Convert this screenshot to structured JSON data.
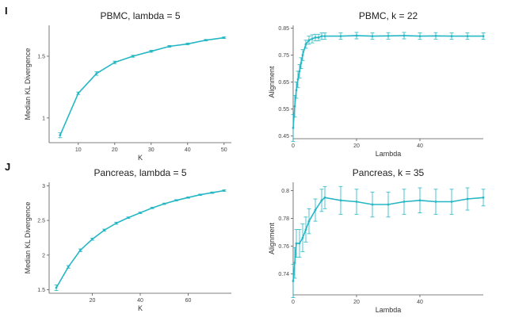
{
  "panels": {
    "I": "I",
    "J": "J"
  },
  "theme": {
    "series_color": "#26b7c5"
  },
  "chart_data": [
    {
      "type": "line",
      "title": "PBMC, lambda = 5",
      "xlabel": "K",
      "ylabel": "Median KL Divergence",
      "xticks": [
        10,
        20,
        30,
        40,
        50
      ],
      "yticks": [
        1.0,
        1.5
      ],
      "xlim": [
        2,
        52
      ],
      "ylim": [
        0.8,
        1.75
      ],
      "x": [
        5,
        10,
        15,
        20,
        25,
        30,
        35,
        40,
        45,
        50
      ],
      "values": [
        0.86,
        1.2,
        1.36,
        1.45,
        1.5,
        1.54,
        1.58,
        1.6,
        1.63,
        1.65
      ],
      "errors": [
        0.02,
        0.01,
        0.015,
        0.01,
        0.008,
        0.008,
        0.007,
        0.007,
        0.006,
        0.006
      ]
    },
    {
      "type": "line",
      "title": "PBMC, k = 22",
      "xlabel": "Lambda",
      "ylabel": "Alignment",
      "xticks": [
        0,
        20,
        40
      ],
      "yticks": [
        0.45,
        0.55,
        0.65,
        0.75,
        0.85
      ],
      "xlim": [
        0,
        60
      ],
      "ylim": [
        0.44,
        0.86
      ],
      "x": [
        0,
        0.5,
        1,
        1.5,
        2,
        2.5,
        3,
        4,
        5,
        6,
        7,
        8,
        9,
        10,
        15,
        20,
        25,
        30,
        35,
        40,
        45,
        50,
        55,
        60
      ],
      "values": [
        0.48,
        0.56,
        0.62,
        0.66,
        0.69,
        0.72,
        0.75,
        0.79,
        0.805,
        0.81,
        0.815,
        0.815,
        0.82,
        0.82,
        0.82,
        0.822,
        0.82,
        0.821,
        0.822,
        0.82,
        0.821,
        0.82,
        0.82,
        0.82
      ],
      "errors": [
        0.05,
        0.04,
        0.03,
        0.03,
        0.025,
        0.02,
        0.02,
        0.015,
        0.015,
        0.015,
        0.012,
        0.012,
        0.012,
        0.012,
        0.012,
        0.012,
        0.012,
        0.012,
        0.012,
        0.012,
        0.012,
        0.012,
        0.012,
        0.012
      ]
    },
    {
      "type": "line",
      "title": "Pancreas, lambda = 5",
      "xlabel": "K",
      "ylabel": "Median KL Divergence",
      "xticks": [
        20,
        40,
        60
      ],
      "yticks": [
        1.5,
        2.0,
        2.5,
        3.0
      ],
      "xlim": [
        2,
        78
      ],
      "ylim": [
        1.45,
        3.05
      ],
      "x": [
        5,
        10,
        15,
        20,
        25,
        30,
        35,
        40,
        45,
        50,
        55,
        60,
        65,
        70,
        75
      ],
      "values": [
        1.53,
        1.83,
        2.07,
        2.23,
        2.36,
        2.46,
        2.54,
        2.61,
        2.68,
        2.74,
        2.79,
        2.83,
        2.87,
        2.9,
        2.93
      ],
      "errors": [
        0.04,
        0.02,
        0.02,
        0.015,
        0.015,
        0.015,
        0.01,
        0.01,
        0.01,
        0.01,
        0.01,
        0.01,
        0.01,
        0.01,
        0.01
      ]
    },
    {
      "type": "line",
      "title": "Pancreas, k = 35",
      "xlabel": "Lambda",
      "ylabel": "Alignment",
      "xticks": [
        0,
        20,
        40
      ],
      "yticks": [
        0.74,
        0.76,
        0.78,
        0.8
      ],
      "xlim": [
        0,
        60
      ],
      "ylim": [
        0.725,
        0.806
      ],
      "x": [
        0,
        0.5,
        1,
        2,
        3,
        4,
        5,
        7,
        9,
        10,
        15,
        20,
        25,
        30,
        35,
        40,
        45,
        50,
        55,
        60
      ],
      "values": [
        0.735,
        0.748,
        0.762,
        0.762,
        0.766,
        0.772,
        0.778,
        0.786,
        0.793,
        0.795,
        0.793,
        0.792,
        0.79,
        0.79,
        0.792,
        0.793,
        0.792,
        0.792,
        0.794,
        0.795
      ],
      "errors": [
        0.012,
        0.011,
        0.01,
        0.01,
        0.01,
        0.009,
        0.009,
        0.008,
        0.008,
        0.008,
        0.01,
        0.009,
        0.009,
        0.009,
        0.009,
        0.009,
        0.009,
        0.009,
        0.008,
        0.006
      ]
    }
  ]
}
